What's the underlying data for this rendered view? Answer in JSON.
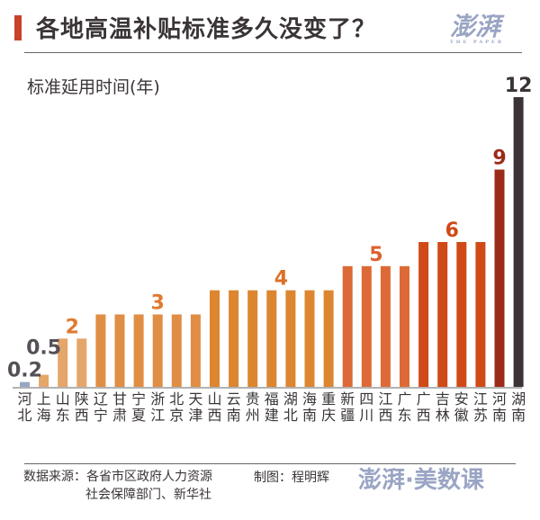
{
  "title": "各地高温补贴标准多久没变了？",
  "logo": {
    "text": "澎湃",
    "sub": "THE PAPER"
  },
  "chart_data": {
    "type": "bar",
    "ylabel": "标准延用时间(年)",
    "ylim": [
      0,
      12
    ],
    "grid": false,
    "categories": [
      "河北",
      "上海",
      "山东",
      "陕西",
      "辽宁",
      "甘肃",
      "宁夏",
      "浙江",
      "北京",
      "天津",
      "山西",
      "云南",
      "贵州",
      "福建",
      "湖北",
      "海南",
      "重庆",
      "新疆",
      "四川",
      "江西",
      "广东",
      "广西",
      "吉林",
      "安徽",
      "江苏",
      "河南",
      "湖南"
    ],
    "values": [
      0.2,
      0.5,
      2,
      2,
      3,
      3,
      3,
      3,
      3,
      3,
      4,
      4,
      4,
      4,
      4,
      4,
      4,
      5,
      5,
      5,
      5,
      6,
      6,
      6,
      6,
      9,
      12
    ],
    "data_labels": [
      {
        "text": "0.2",
        "index": 0,
        "color": "#555055"
      },
      {
        "text": "0.5",
        "index": 1,
        "color": "#555055"
      },
      {
        "text": "2",
        "index": 2.5,
        "color": "#e07a30"
      },
      {
        "text": "3",
        "index": 7,
        "color": "#e07a30"
      },
      {
        "text": "4",
        "index": 13.5,
        "color": "#dc7028"
      },
      {
        "text": "5",
        "index": 18.5,
        "color": "#dd6030"
      },
      {
        "text": "6",
        "index": 22.5,
        "color": "#d04a18"
      },
      {
        "text": "9",
        "index": 25,
        "color": "#9c2a18"
      },
      {
        "text": "12",
        "index": 26,
        "color": "#3a3436"
      }
    ],
    "colors_by_value": {
      "0.2": "#9aa5c4",
      "0.5": "#e4a66a",
      "2": "#e4a66a",
      "3": "#e08d45",
      "4": "#dc8630",
      "5": "#dd6a36",
      "6": "#d04a18",
      "9": "#9c2a18",
      "12": "#3a3436"
    }
  },
  "footer": {
    "source_line1": "数据来源：各省市区政府人力资源",
    "source_line2": "社会保障部门、新华社",
    "credit": "制图：程明辉",
    "brand": "澎湃·美数课"
  }
}
